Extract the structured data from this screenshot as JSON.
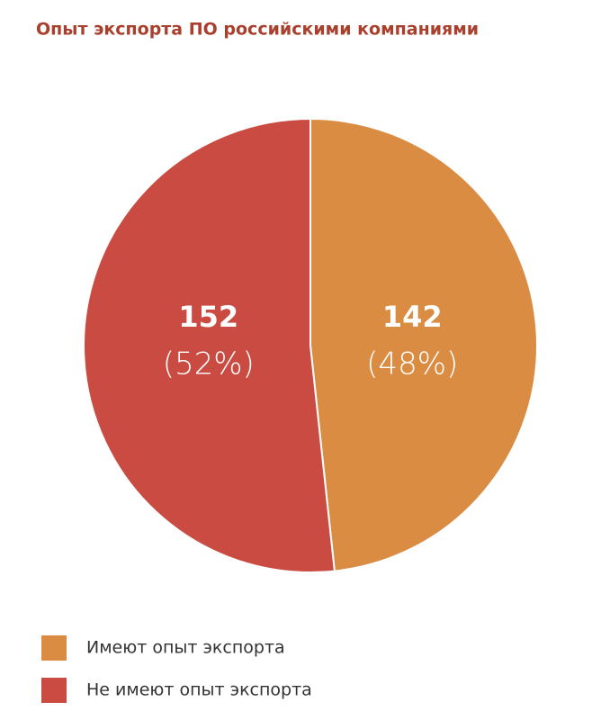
{
  "chart_data": {
    "type": "pie",
    "title": "Опыт экспорта ПО российскими компаниями",
    "categories": [
      "Имеют опыт экспорта",
      "Не имеют опыт экспорта"
    ],
    "values": [
      142,
      152
    ],
    "percent_labels": [
      "(48%)",
      "(52%)"
    ],
    "colors": [
      "#d98c42",
      "#c94b42"
    ]
  }
}
